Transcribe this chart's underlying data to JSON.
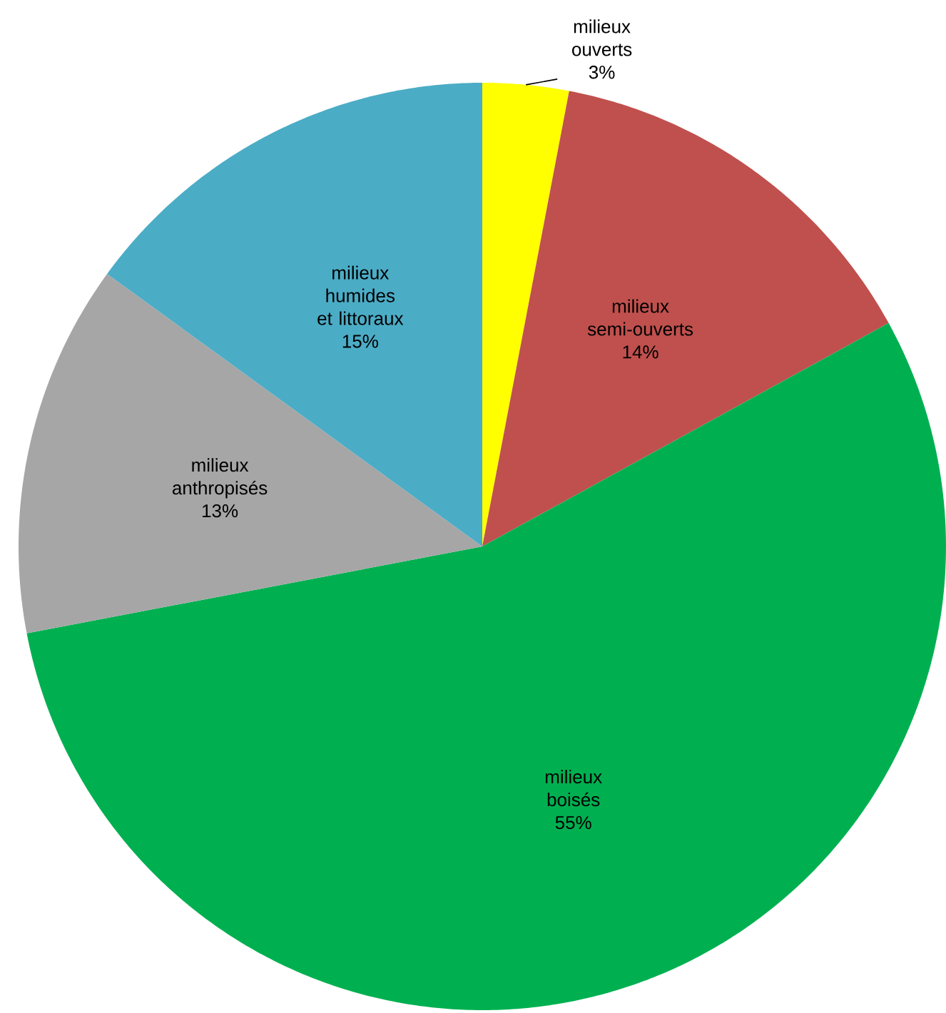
{
  "chart_data": {
    "type": "pie",
    "categories": [
      "milieux ouverts",
      "milieux semi-ouverts",
      "milieux boisés",
      "milieux anthropisés",
      "milieux humides et littoraux"
    ],
    "values": [
      3,
      14,
      55,
      13,
      15
    ],
    "value_labels": [
      "3%",
      "14%",
      "55%",
      "13%",
      "15%"
    ],
    "colors": [
      "#ffff00",
      "#c0504d",
      "#00b050",
      "#a6a6a6",
      "#4bacc6"
    ]
  }
}
